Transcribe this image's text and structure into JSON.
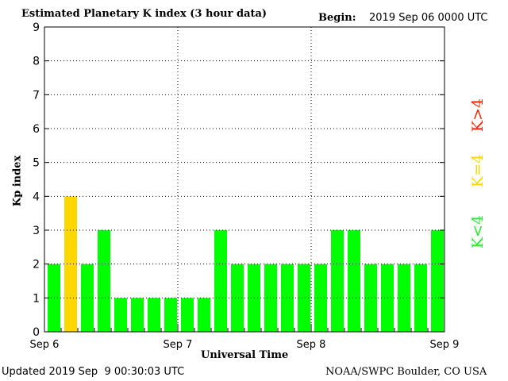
{
  "header": {
    "title": "Estimated Planetary K index (3 hour data)",
    "begin_label": "Begin:",
    "begin_value": "2019 Sep 06 0000 UTC"
  },
  "footer": {
    "updated": "Updated 2019 Sep  9 00:30:03 UTC",
    "credit": "NOAA/SWPC Boulder, CO USA"
  },
  "legend": {
    "items": [
      {
        "label": "K>4",
        "color": "#ff2200"
      },
      {
        "label": "K=4",
        "color": "#ffd700"
      },
      {
        "label": "K<4",
        "color": "#22ee22"
      }
    ]
  },
  "colors": {
    "below4": "#00ff00",
    "equal4": "#ffd700",
    "above4": "#ff2200",
    "grid": "#000000"
  },
  "chart_data": {
    "type": "bar",
    "title": "Estimated Planetary K index (3 hour data)",
    "xlabel": "Universal Time",
    "ylabel": "Kp index",
    "ylim": [
      0,
      9
    ],
    "yticks": [
      "0",
      "1",
      "2",
      "3",
      "4",
      "5",
      "6",
      "7",
      "8",
      "9"
    ],
    "x_tick_labels": [
      "Sep 6",
      "Sep 7",
      "Sep 8",
      "Sep 9"
    ],
    "grid": "dotted",
    "values": [
      2,
      4,
      2,
      3,
      1,
      1,
      1,
      1,
      1,
      1,
      3,
      2,
      2,
      2,
      2,
      2,
      2,
      3,
      3,
      2,
      2,
      2,
      2,
      3
    ]
  }
}
